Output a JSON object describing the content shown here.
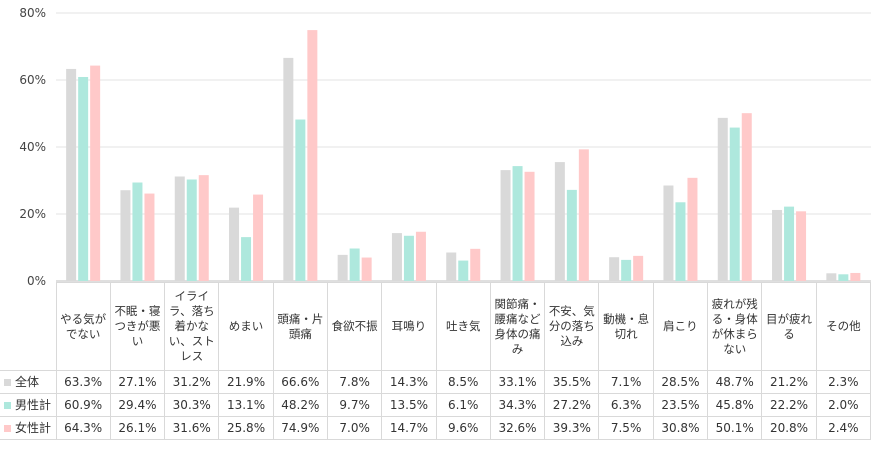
{
  "chart_data": {
    "type": "bar",
    "title": "",
    "xlabel": "",
    "ylabel": "",
    "ylim": [
      0,
      80
    ],
    "yticks": [
      "0%",
      "20%",
      "40%",
      "60%",
      "80%"
    ],
    "grid": true,
    "categories": [
      "やる気がでない",
      "不眠・寝つきが悪い",
      "イライラ、落ち着かない、ストレス",
      "めまい",
      "頭痛・片頭痛",
      "食欲不振",
      "耳鳴り",
      "吐き気",
      "関節痛・腰痛など身体の痛み",
      "不安、気分の落ち込み",
      "動機・息切れ",
      "肩こり",
      "疲れが残る・身体が休まらない",
      "目が疲れる",
      "その他"
    ],
    "series": [
      {
        "name": "全体",
        "color": "#d9d9d9",
        "values": [
          63.3,
          27.1,
          31.2,
          21.9,
          66.6,
          7.8,
          14.3,
          8.5,
          33.1,
          35.5,
          7.1,
          28.5,
          48.7,
          21.2,
          2.3
        ],
        "labels": [
          "63.3%",
          "27.1%",
          "31.2%",
          "21.9%",
          "66.6%",
          "7.8%",
          "14.3%",
          "8.5%",
          "33.1%",
          "35.5%",
          "7.1%",
          "28.5%",
          "48.7%",
          "21.2%",
          "2.3%"
        ]
      },
      {
        "name": "男性計",
        "color": "#aee8dd",
        "values": [
          60.9,
          29.4,
          30.3,
          13.1,
          48.2,
          9.7,
          13.5,
          6.1,
          34.3,
          27.2,
          6.3,
          23.5,
          45.8,
          22.2,
          2.0
        ],
        "labels": [
          "60.9%",
          "29.4%",
          "30.3%",
          "13.1%",
          "48.2%",
          "9.7%",
          "13.5%",
          "6.1%",
          "34.3%",
          "27.2%",
          "6.3%",
          "23.5%",
          "45.8%",
          "22.2%",
          "2.0%"
        ]
      },
      {
        "name": "女性計",
        "color": "#ffc9c9",
        "values": [
          64.3,
          26.1,
          31.6,
          25.8,
          74.9,
          7.0,
          14.7,
          9.6,
          32.6,
          39.3,
          7.5,
          30.8,
          50.1,
          20.8,
          2.4
        ],
        "labels": [
          "64.3%",
          "26.1%",
          "31.6%",
          "25.8%",
          "74.9%",
          "7.0%",
          "14.7%",
          "9.6%",
          "32.6%",
          "39.3%",
          "7.5%",
          "30.8%",
          "50.1%",
          "20.8%",
          "2.4%"
        ]
      }
    ]
  }
}
